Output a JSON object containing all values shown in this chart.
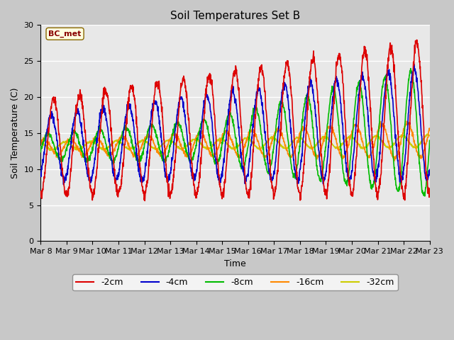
{
  "title": "Soil Temperatures Set B",
  "xlabel": "Time",
  "ylabel": "Soil Temperature (C)",
  "annotation": "BC_met",
  "ylim": [
    0,
    30
  ],
  "plot_bg_color": "#e8e8e8",
  "fig_bg_color": "#c8c8c8",
  "series": {
    "-2cm": {
      "color": "#dd0000",
      "lw": 1.2
    },
    "-4cm": {
      "color": "#0000cc",
      "lw": 1.2
    },
    "-8cm": {
      "color": "#00bb00",
      "lw": 1.2
    },
    "-16cm": {
      "color": "#ff8800",
      "lw": 1.2
    },
    "-32cm": {
      "color": "#cccc00",
      "lw": 1.2
    }
  },
  "x_tick_labels": [
    "Mar 8",
    "Mar 9",
    "Mar 10",
    "Mar 11",
    "Mar 12",
    "Mar 13",
    "Mar 14",
    "Mar 15",
    "Mar 16",
    "Mar 17",
    "Mar 18",
    "Mar 19",
    "Mar 20",
    "Mar 21",
    "Mar 22",
    "Mar 23"
  ],
  "n_days": 16,
  "yticks": [
    0,
    5,
    10,
    15,
    20,
    25,
    30
  ],
  "grid_color": "#ffffff",
  "grid_lw": 1.0
}
